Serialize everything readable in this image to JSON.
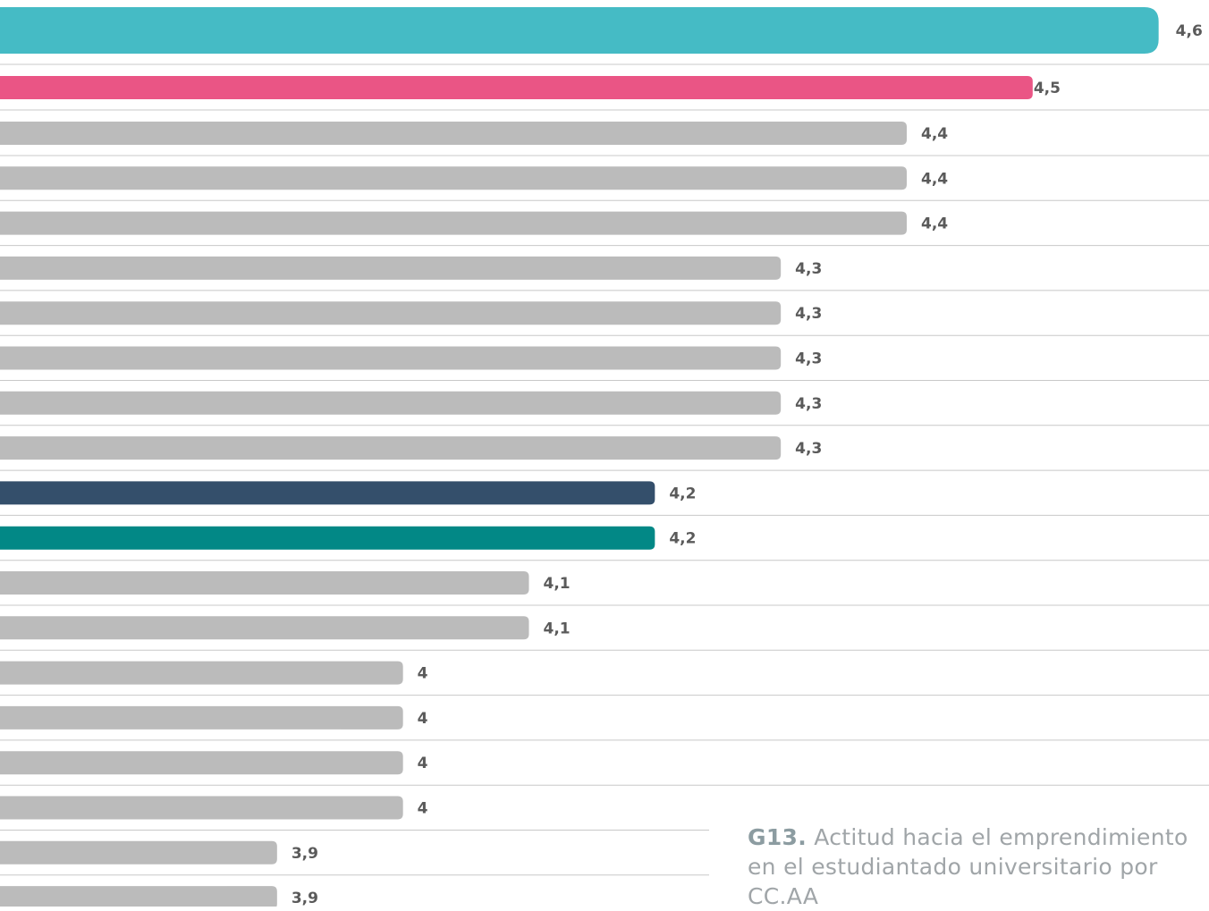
{
  "chart_data": {
    "type": "bar",
    "orientation": "horizontal",
    "title_label": "G13.",
    "title": "Actitud hacia el emprendimiento en el estudiantado universitario por CC.AA",
    "values": [
      4.6,
      4.5,
      4.4,
      4.4,
      4.4,
      4.3,
      4.3,
      4.3,
      4.3,
      4.3,
      4.2,
      4.2,
      4.1,
      4.1,
      4,
      4,
      4,
      4,
      3.9,
      3.9
    ],
    "value_labels": [
      "4,6",
      "4,5",
      "4,4",
      "4,4",
      "4,4",
      "4,3",
      "4,3",
      "4,3",
      "4,3",
      "4,3",
      "4,2",
      "4,2",
      "4,1",
      "4,1",
      "4",
      "4",
      "4",
      "4",
      "3,9",
      "3,9"
    ],
    "colors": [
      "#45bbc5",
      "#ea5585",
      "#bbbbbb",
      "#bbbbbb",
      "#bbbbbb",
      "#bbbbbb",
      "#bbbbbb",
      "#bbbbbb",
      "#bbbbbb",
      "#bbbbbb",
      "#344f6b",
      "#028886",
      "#bbbbbb",
      "#bbbbbb",
      "#bbbbbb",
      "#bbbbbb",
      "#bbbbbb",
      "#bbbbbb",
      "#bbbbbb",
      "#bbbbbb"
    ],
    "xlim": [
      3.68,
      4.64
    ]
  }
}
